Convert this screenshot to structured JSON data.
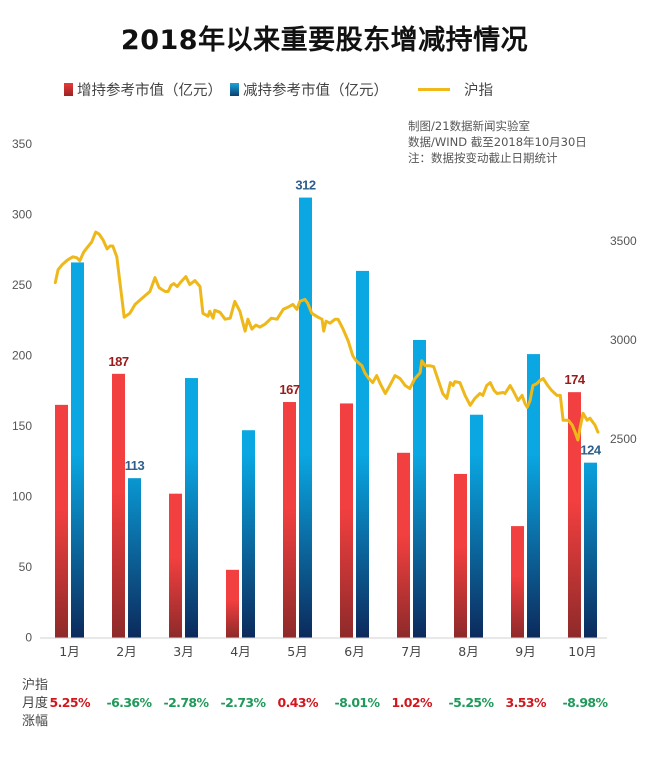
{
  "title": "2018年以来重要股东增减持情况",
  "legend": {
    "increase": "增持参考市值（亿元）",
    "decrease": "减持参考市值（亿元）",
    "index": "沪指"
  },
  "credits": [
    "制图/21数据新闻实验室",
    "数据/WIND 截至2018年10月30日",
    "注：数据按变动截止日期统计"
  ],
  "footer": {
    "label_lines": [
      "沪指",
      "月度",
      "涨幅"
    ],
    "monthly_change": [
      "5.25%",
      "-6.36%",
      "-2.78%",
      "-2.73%",
      "0.43%",
      "-8.01%",
      "1.02%",
      "-5.25%",
      "3.53%",
      "-8.98%"
    ],
    "up_color": "#d2161e",
    "down_color": "#1f9a5a"
  },
  "colors": {
    "increase_top": "#f23f3f",
    "increase_bottom": "#8e2a2a",
    "decrease_top": "#0aa7e2",
    "decrease_bottom": "#0c2a5c",
    "index_line": "#efb81a",
    "increase_label": "#9b1b1b",
    "decrease_label": "#2e5f8c"
  },
  "chart_data": {
    "type": "bar",
    "title": "2018年以来重要股东增减持情况",
    "categories": [
      "1月",
      "2月",
      "3月",
      "4月",
      "5月",
      "6月",
      "7月",
      "8月",
      "9月",
      "10月"
    ],
    "series": [
      {
        "name": "增持参考市值（亿元）",
        "axis": "left",
        "values": [
          165,
          187,
          102,
          48,
          167,
          166,
          131,
          116,
          79,
          174
        ],
        "labels": {
          "1": "187",
          "4": "167",
          "9": "174"
        }
      },
      {
        "name": "减持参考市值（亿元）",
        "axis": "left",
        "values": [
          266,
          113,
          184,
          147,
          312,
          260,
          211,
          158,
          201,
          124
        ],
        "labels": {
          "1": "113",
          "4": "312",
          "9": "124"
        }
      }
    ],
    "line_series": {
      "name": "沪指",
      "type": "line",
      "axis": "right",
      "x_note": "position in month units (1 = Jan center, 10 = Oct center)",
      "points": [
        [
          0.75,
          3290
        ],
        [
          0.8,
          3355
        ],
        [
          0.87,
          3380
        ],
        [
          0.97,
          3405
        ],
        [
          1.06,
          3420
        ],
        [
          1.13,
          3415
        ],
        [
          1.18,
          3400
        ],
        [
          1.25,
          3445
        ],
        [
          1.32,
          3470
        ],
        [
          1.39,
          3495
        ],
        [
          1.46,
          3545
        ],
        [
          1.52,
          3535
        ],
        [
          1.59,
          3505
        ],
        [
          1.66,
          3460
        ],
        [
          1.71,
          3475
        ],
        [
          1.76,
          3475
        ],
        [
          1.83,
          3420
        ],
        [
          1.96,
          3115
        ],
        [
          2.06,
          3135
        ],
        [
          2.15,
          3180
        ],
        [
          2.25,
          3205
        ],
        [
          2.41,
          3245
        ],
        [
          2.5,
          3315
        ],
        [
          2.57,
          3265
        ],
        [
          2.62,
          3255
        ],
        [
          2.68,
          3245
        ],
        [
          2.73,
          3245
        ],
        [
          2.78,
          3275
        ],
        [
          2.83,
          3285
        ],
        [
          2.89,
          3270
        ],
        [
          2.96,
          3295
        ],
        [
          3.04,
          3320
        ],
        [
          3.11,
          3280
        ],
        [
          3.2,
          3300
        ],
        [
          3.29,
          3270
        ],
        [
          3.34,
          3135
        ],
        [
          3.43,
          3120
        ],
        [
          3.46,
          3145
        ],
        [
          3.52,
          3110
        ],
        [
          3.55,
          3150
        ],
        [
          3.64,
          3140
        ],
        [
          3.73,
          3105
        ],
        [
          3.82,
          3110
        ],
        [
          3.9,
          3195
        ],
        [
          3.99,
          3145
        ],
        [
          4.08,
          3045
        ],
        [
          4.13,
          3105
        ],
        [
          4.2,
          3055
        ],
        [
          4.27,
          3075
        ],
        [
          4.34,
          3065
        ],
        [
          4.43,
          3080
        ],
        [
          4.54,
          3110
        ],
        [
          4.64,
          3105
        ],
        [
          4.75,
          3155
        ],
        [
          4.83,
          3165
        ],
        [
          4.92,
          3180
        ],
        [
          4.99,
          3155
        ],
        [
          5.04,
          3195
        ],
        [
          5.13,
          3205
        ],
        [
          5.18,
          3185
        ],
        [
          5.25,
          3135
        ],
        [
          5.36,
          3115
        ],
        [
          5.43,
          3105
        ],
        [
          5.46,
          3045
        ],
        [
          5.5,
          3095
        ],
        [
          5.57,
          3085
        ],
        [
          5.66,
          3105
        ],
        [
          5.71,
          3105
        ],
        [
          5.8,
          3055
        ],
        [
          5.89,
          2995
        ],
        [
          5.97,
          2920
        ],
        [
          6.03,
          2895
        ],
        [
          6.13,
          2870
        ],
        [
          6.18,
          2835
        ],
        [
          6.25,
          2805
        ],
        [
          6.32,
          2785
        ],
        [
          6.39,
          2820
        ],
        [
          6.45,
          2780
        ],
        [
          6.54,
          2730
        ],
        [
          6.62,
          2770
        ],
        [
          6.71,
          2820
        ],
        [
          6.8,
          2805
        ],
        [
          6.89,
          2770
        ],
        [
          6.97,
          2755
        ],
        [
          7.06,
          2805
        ],
        [
          7.15,
          2835
        ],
        [
          7.18,
          2895
        ],
        [
          7.24,
          2870
        ],
        [
          7.32,
          2870
        ],
        [
          7.39,
          2865
        ],
        [
          7.46,
          2805
        ],
        [
          7.55,
          2730
        ],
        [
          7.62,
          2705
        ],
        [
          7.68,
          2785
        ],
        [
          7.73,
          2770
        ],
        [
          7.76,
          2790
        ],
        [
          7.85,
          2785
        ],
        [
          7.94,
          2720
        ],
        [
          8.03,
          2670
        ],
        [
          8.11,
          2705
        ],
        [
          8.2,
          2730
        ],
        [
          8.25,
          2720
        ],
        [
          8.32,
          2770
        ],
        [
          8.38,
          2785
        ],
        [
          8.45,
          2745
        ],
        [
          8.5,
          2730
        ],
        [
          8.61,
          2735
        ],
        [
          8.64,
          2730
        ],
        [
          8.73,
          2770
        ],
        [
          8.78,
          2745
        ],
        [
          8.87,
          2695
        ],
        [
          8.94,
          2720
        ],
        [
          8.99,
          2680
        ],
        [
          9.03,
          2660
        ],
        [
          9.08,
          2695
        ],
        [
          9.13,
          2770
        ],
        [
          9.2,
          2780
        ],
        [
          9.25,
          2795
        ],
        [
          9.31,
          2805
        ],
        [
          9.39,
          2770
        ],
        [
          9.46,
          2745
        ],
        [
          9.55,
          2720
        ],
        [
          9.61,
          2720
        ],
        [
          9.66,
          2595
        ],
        [
          9.75,
          2595
        ],
        [
          9.82,
          2570
        ],
        [
          9.87,
          2535
        ],
        [
          9.92,
          2495
        ],
        [
          9.96,
          2560
        ],
        [
          10.01,
          2630
        ],
        [
          10.08,
          2595
        ],
        [
          10.13,
          2605
        ],
        [
          10.22,
          2570
        ],
        [
          10.27,
          2535
        ]
      ]
    },
    "y_left": {
      "label": "",
      "ticks": [
        0,
        50,
        100,
        150,
        200,
        250,
        300,
        350
      ],
      "range": [
        0,
        350
      ]
    },
    "y_right": {
      "label": "",
      "ticks": [
        2500,
        3000,
        3500
      ],
      "range": [
        2500,
        3500
      ]
    },
    "xlabel": "",
    "grid": false,
    "legend_position": "top"
  }
}
